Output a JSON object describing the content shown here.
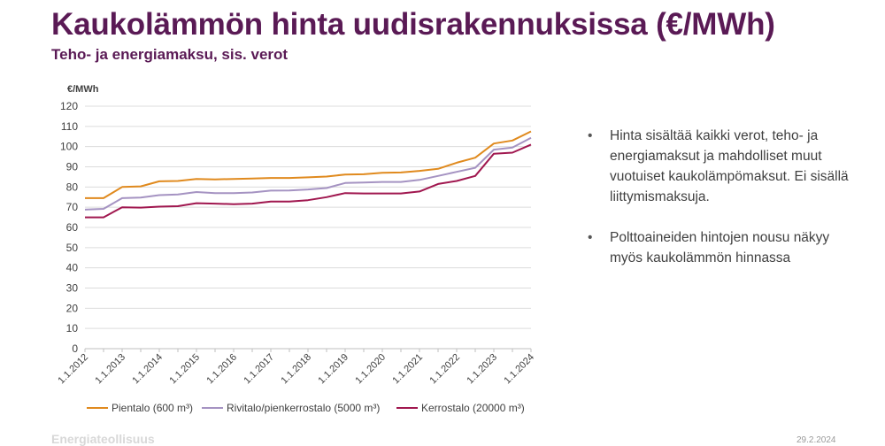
{
  "slide": {
    "title": "Kaukolämmön hinta uudisrakennuksissa (€/MWh)",
    "subtitle": "Teho- ja energiamaksu, sis. verot",
    "bullets": [
      "Hinta sisältää kaikki verot, teho- ja energiamaksut ja mahdolliset muut vuotuiset kaukolämpömaksut. Ei sisällä liittymismaksuja.",
      "Polttoaineiden hintojen nousu näkyy myös kaukolämmön hinnassa"
    ],
    "footer_logo": "Energiateollisuus",
    "footer_date": "29.2.2024"
  },
  "chart_data": {
    "type": "line",
    "title": "",
    "ylabel": "€/MWh",
    "xlabel": "",
    "ylim": [
      0,
      120
    ],
    "yticks": [
      0,
      10,
      20,
      30,
      40,
      50,
      60,
      70,
      80,
      90,
      100,
      110,
      120
    ],
    "x": [
      "1.1.2012",
      "1.7.2012",
      "1.1.2013",
      "1.7.2013",
      "1.1.2014",
      "1.7.2014",
      "1.1.2015",
      "1.7.2015",
      "1.1.2016",
      "1.7.2016",
      "1.1.2017",
      "1.7.2017",
      "1.1.2018",
      "1.7.2018",
      "1.1.2019",
      "1.7.2019",
      "1.1.2020",
      "1.7.2020",
      "1.1.2021",
      "1.7.2021",
      "1.1.2022",
      "1.7.2022",
      "1.1.2023",
      "1.7.2023",
      "1.1.2024"
    ],
    "xtick_labels": [
      "1.1.2012",
      "1.1.2013",
      "1.1.2014",
      "1.1.2015",
      "1.1.2016",
      "1.1.2017",
      "1.1.2018",
      "1.1.2019",
      "1.1.2020",
      "1.1.2021",
      "1.1.2022",
      "1.1.2023",
      "1.1.2024"
    ],
    "grid": true,
    "legend_position": "bottom",
    "series": [
      {
        "name": "Pientalo (600 m³)",
        "color": "#e08a1e",
        "values": [
          74.5,
          74.5,
          80.0,
          80.3,
          82.8,
          83.0,
          84.0,
          83.8,
          84.0,
          84.2,
          84.5,
          84.5,
          84.8,
          85.2,
          86.2,
          86.3,
          87.0,
          87.2,
          88.0,
          89.0,
          92.0,
          94.5,
          101.5,
          103.0,
          107.5
        ]
      },
      {
        "name": "Rivitalo/pienkerrostalo (5000 m³)",
        "color": "#a593c2",
        "values": [
          68.8,
          69.2,
          74.5,
          74.8,
          76.0,
          76.3,
          77.5,
          77.0,
          77.0,
          77.3,
          78.2,
          78.3,
          78.8,
          79.5,
          82.0,
          82.2,
          82.5,
          82.5,
          83.5,
          85.5,
          87.5,
          89.5,
          98.5,
          99.5,
          104.3
        ]
      },
      {
        "name": "Kerrostalo (20000 m³)",
        "color": "#a0174f",
        "values": [
          65.0,
          65.0,
          70.0,
          69.8,
          70.3,
          70.5,
          72.0,
          71.8,
          71.5,
          71.8,
          72.8,
          72.8,
          73.5,
          75.0,
          77.0,
          76.8,
          76.8,
          76.8,
          77.8,
          81.5,
          83.0,
          85.5,
          96.5,
          97.0,
          101.0
        ]
      }
    ]
  }
}
